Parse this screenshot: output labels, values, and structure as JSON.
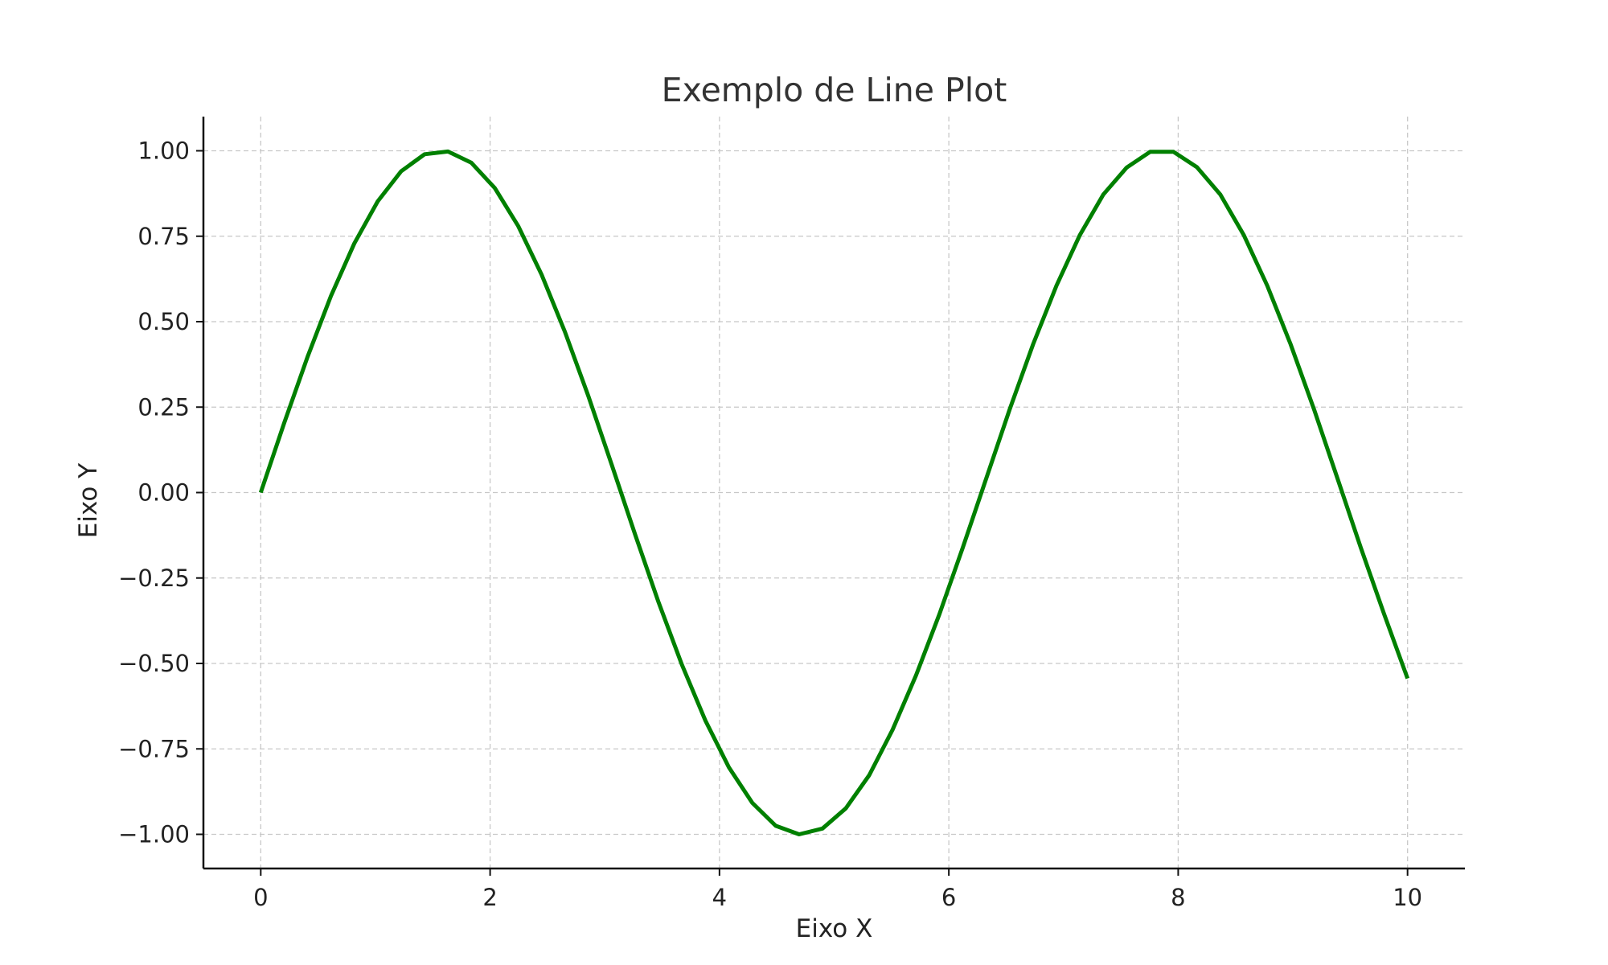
{
  "chart_data": {
    "type": "line",
    "title": "Exemplo de Line Plot",
    "xlabel": "Eixo X",
    "ylabel": "Eixo Y",
    "xlim": [
      -0.5,
      10.5
    ],
    "ylim": [
      -1.1,
      1.1
    ],
    "xticks": [
      0,
      2,
      4,
      6,
      8,
      10
    ],
    "yticks": [
      -1.0,
      -0.75,
      -0.5,
      -0.25,
      0.0,
      0.25,
      0.5,
      0.75,
      1.0
    ],
    "xtick_labels": [
      "0",
      "2",
      "4",
      "6",
      "8",
      "10"
    ],
    "ytick_labels": [
      "−1.00",
      "−0.75",
      "−0.50",
      "−0.25",
      "0.00",
      "0.25",
      "0.50",
      "0.75",
      "1.00"
    ],
    "grid": true,
    "series": [
      {
        "color": "#008000",
        "x": [
          0.0,
          0.204,
          0.408,
          0.612,
          0.816,
          1.02,
          1.224,
          1.429,
          1.633,
          1.837,
          2.041,
          2.245,
          2.449,
          2.653,
          2.857,
          3.061,
          3.265,
          3.469,
          3.673,
          3.878,
          4.082,
          4.286,
          4.49,
          4.694,
          4.898,
          5.102,
          5.306,
          5.51,
          5.714,
          5.918,
          6.122,
          6.327,
          6.531,
          6.735,
          6.939,
          7.143,
          7.347,
          7.551,
          7.755,
          7.959,
          8.163,
          8.367,
          8.571,
          8.776,
          8.98,
          9.184,
          9.388,
          9.592,
          9.796,
          10.0
        ],
        "y": [
          0.0,
          0.203,
          0.397,
          0.575,
          0.729,
          0.852,
          0.94,
          0.99,
          0.998,
          0.965,
          0.891,
          0.78,
          0.638,
          0.47,
          0.282,
          0.081,
          -0.123,
          -0.321,
          -0.504,
          -0.668,
          -0.804,
          -0.908,
          -0.975,
          -1.0,
          -0.983,
          -0.924,
          -0.827,
          -0.694,
          -0.535,
          -0.356,
          -0.161,
          0.042,
          0.244,
          0.434,
          0.606,
          0.754,
          0.872,
          0.951,
          0.997,
          0.997,
          0.952,
          0.872,
          0.754,
          0.606,
          0.434,
          0.244,
          0.042,
          -0.161,
          -0.356,
          -0.544
        ]
      }
    ]
  }
}
